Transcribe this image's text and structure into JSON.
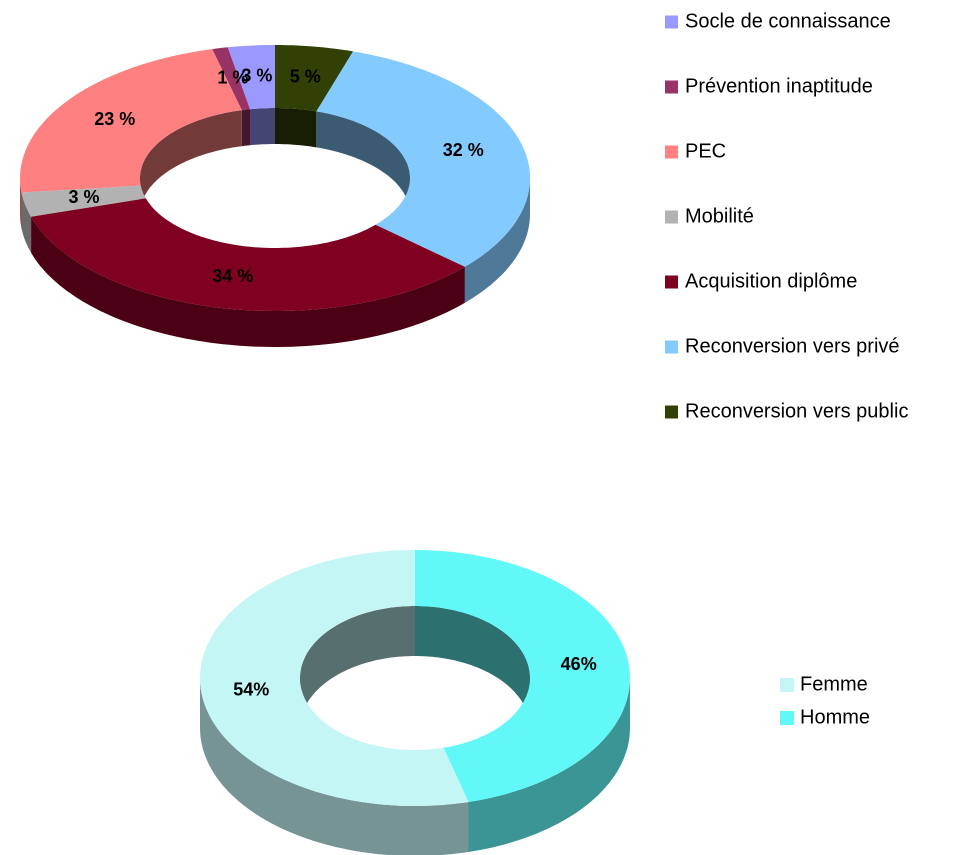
{
  "chart_data": [
    {
      "type": "donut3d",
      "categories": [
        "Socle de connaissance",
        "Prévention inaptitude",
        "PEC",
        "Mobilité",
        "Acquisition diplôme",
        "Reconversion vers privé",
        "Reconversion vers public"
      ],
      "values": [
        3,
        1,
        23,
        3,
        34,
        32,
        5
      ],
      "value_labels": [
        "3 %",
        "1 %",
        "23 %",
        "3 %",
        "34 %",
        "32 %",
        "5 %"
      ],
      "colors": [
        "#9999ff",
        "#993366",
        "#ff8080",
        "#b2b2b2",
        "#7f0021",
        "#83caff",
        "#314004"
      ]
    },
    {
      "type": "donut3d",
      "categories": [
        "Femme",
        "Homme"
      ],
      "values": [
        54,
        46
      ],
      "value_labels": [
        "54%",
        "46%"
      ],
      "colors": [
        "#c4f6f6",
        "#63f8f8"
      ]
    }
  ]
}
